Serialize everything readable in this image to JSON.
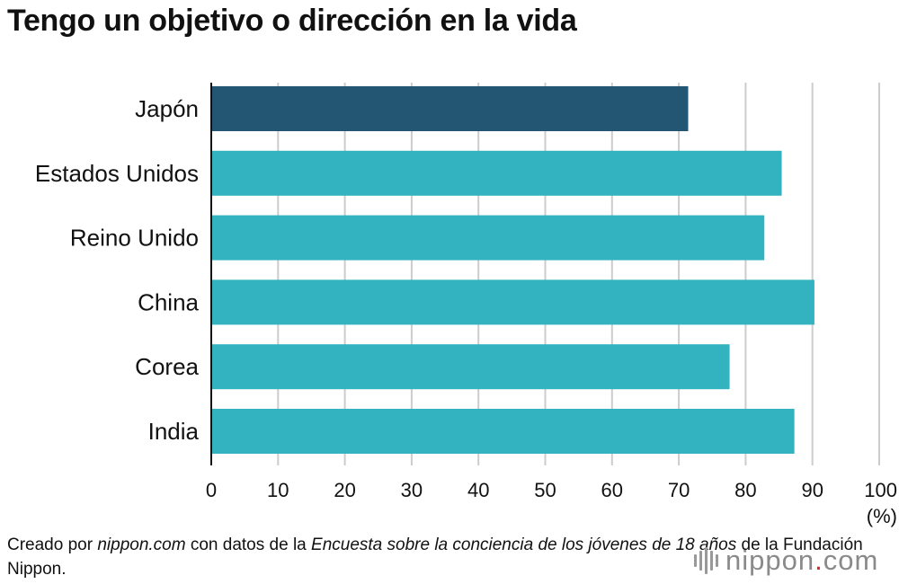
{
  "title": "Tengo un objetivo o dirección en la vida",
  "chart_data": {
    "type": "bar",
    "orientation": "horizontal",
    "title": "Tengo un objetivo o dirección en la vida",
    "categories": [
      "Japón",
      "Estados Unidos",
      "Reino Unido",
      "China",
      "Corea",
      "India"
    ],
    "values": [
      71.4,
      85.4,
      82.8,
      90.3,
      77.6,
      87.3
    ],
    "highlight_index": 0,
    "xlim": [
      0,
      100
    ],
    "xticks": [
      "0",
      "10",
      "20",
      "30",
      "40",
      "50",
      "60",
      "70",
      "80",
      "90",
      "100"
    ],
    "xunit": "(%)",
    "colors": {
      "highlight": "#235673",
      "default": "#33b3c0",
      "grid": "#cccccc",
      "axis": "#111111"
    },
    "grid": true
  },
  "source": {
    "prefix": "Creado por ",
    "site": "nippon.com",
    "mid": " con datos de la ",
    "survey": "Encuesta sobre la conciencia de los jóvenes de 18 años",
    "suffix": " de la Fundación Nippon."
  },
  "logo": {
    "text_main": "nippon",
    "dot": ".",
    "text_end": "com",
    "icon": "nippon-logo-mark-icon"
  }
}
